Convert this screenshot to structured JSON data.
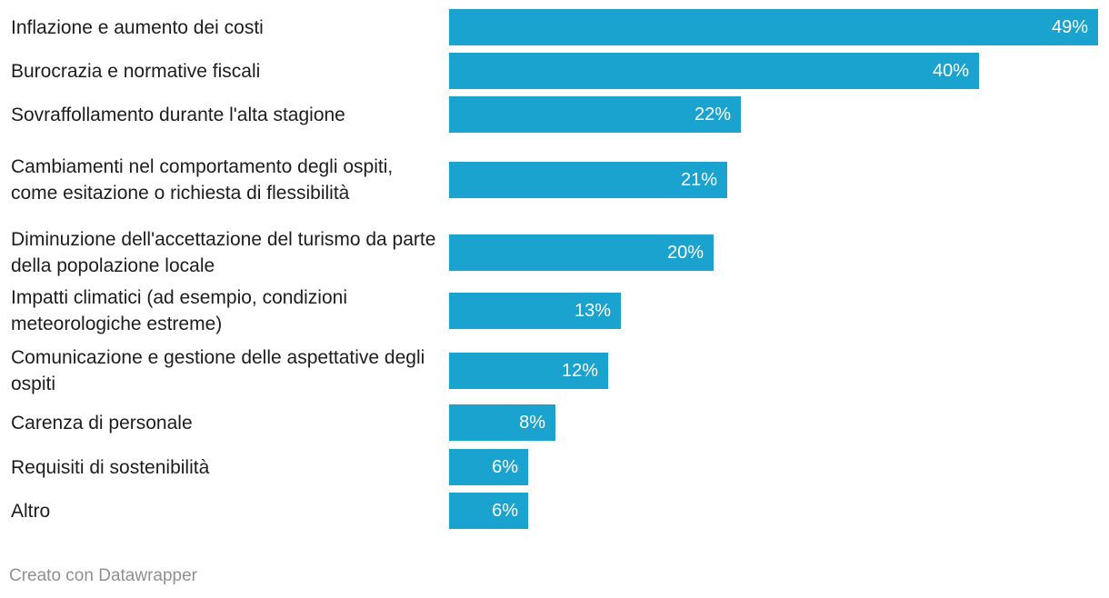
{
  "chart_data": {
    "type": "bar",
    "orientation": "horizontal",
    "unit": "%",
    "xlim": [
      0,
      49
    ],
    "bar_color": "#1ba3d0",
    "categories": [
      "Inflazione e aumento dei costi",
      "Burocrazia e normative fiscali",
      "Sovraffollamento durante l'alta stagione",
      "Cambiamenti nel comportamento degli ospiti, come esitazione o richiesta di flessibilità",
      "Diminuzione dell'accettazione del turismo da parte della popolazione locale",
      "Impatti climatici (ad esempio, condizioni meteorologiche estreme)",
      "Comunicazione e gestione delle aspettative degli ospiti",
      "Carenza di personale",
      "Requisiti di sostenibilità",
      "Altro"
    ],
    "values": [
      49,
      40,
      22,
      21,
      20,
      13,
      12,
      8,
      6,
      6
    ],
    "value_labels": [
      "49%",
      "40%",
      "22%",
      "21%",
      "20%",
      "13%",
      "12%",
      "8%",
      "6%",
      "6%"
    ]
  },
  "footer": {
    "credit": "Creato con Datawrapper"
  }
}
